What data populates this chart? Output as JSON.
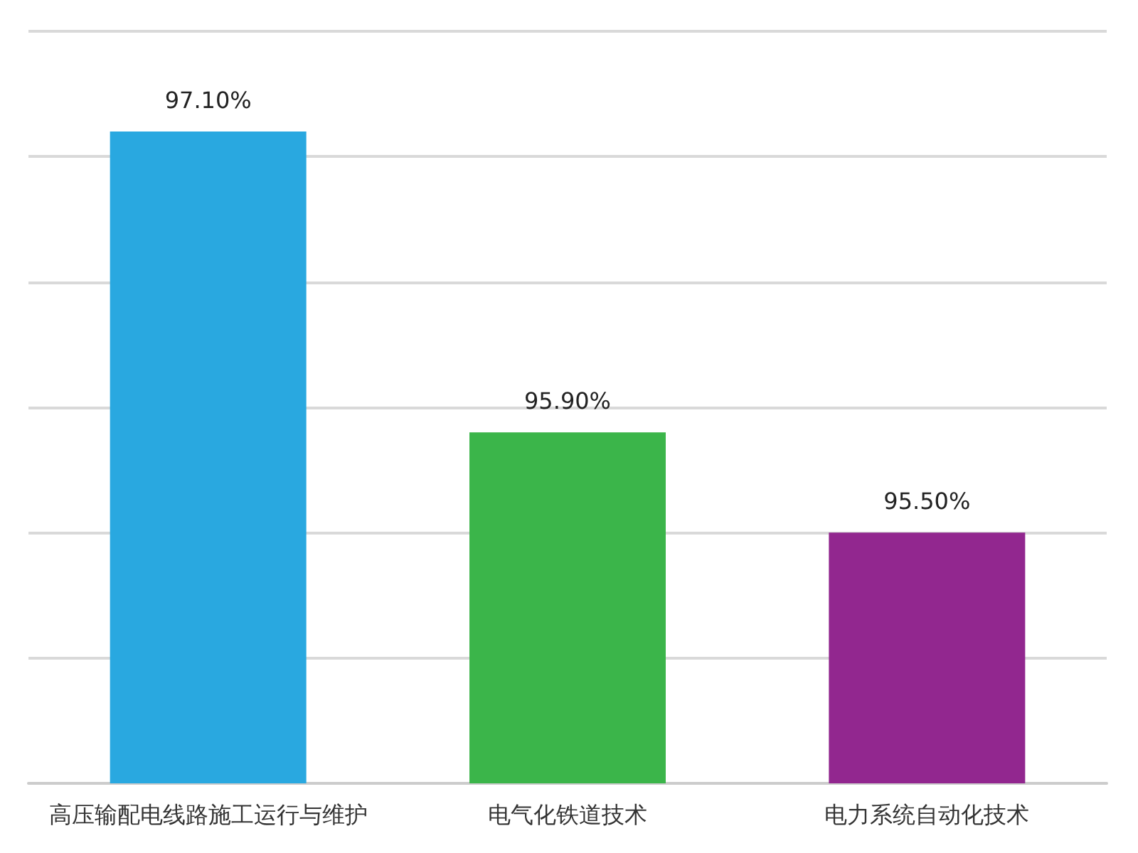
{
  "chart_data": {
    "type": "bar",
    "categories": [
      "高压输配电线路施工运行与维护",
      "电气化铁道技术",
      "电力系统自动化技术"
    ],
    "values": [
      97.1,
      95.9,
      95.5
    ],
    "colors": [
      "#29a8e0",
      "#3bb54a",
      "#92278f"
    ],
    "value_labels": [
      "97.10%",
      "95.90%",
      "95.50%"
    ],
    "ylim": [
      94.5,
      97.5
    ],
    "yticks": [
      {
        "value": 94.5,
        "label": null
      },
      {
        "value": 95,
        "label": null
      },
      {
        "value": 95.5,
        "label": null
      },
      {
        "value": 96,
        "label": null
      },
      {
        "value": 96.5,
        "label": null
      },
      {
        "value": 97,
        "label": null
      },
      {
        "value": 97.5,
        "label": null
      }
    ],
    "tick_labels": "x",
    "grid": "y"
  }
}
